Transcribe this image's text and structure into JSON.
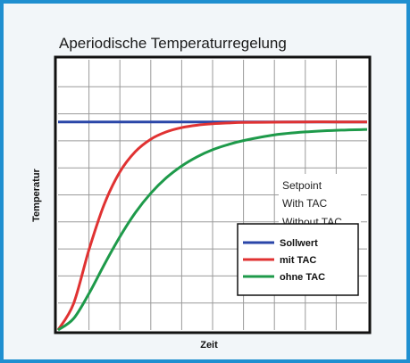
{
  "chart_data": {
    "type": "line",
    "title": "Aperiodische Temperaturregelung",
    "xlabel": "Zeit",
    "ylabel": "Temperatur",
    "xlim": [
      0,
      10
    ],
    "ylim": [
      0,
      10
    ],
    "grid": true,
    "legend_position": "bottom-right",
    "series": [
      {
        "name": "Sollwert",
        "color": "#2a46a8",
        "x": [
          0,
          10
        ],
        "y": [
          7.7,
          7.7
        ]
      },
      {
        "name": "mit TAC",
        "color": "#e03232",
        "x": [
          0,
          0.5,
          1,
          1.5,
          2,
          2.5,
          3,
          3.5,
          4,
          4.5,
          5,
          5.5,
          6,
          7,
          8,
          9,
          10
        ],
        "y": [
          0,
          0.97,
          2.97,
          4.67,
          5.85,
          6.6,
          7.06,
          7.33,
          7.49,
          7.58,
          7.63,
          7.66,
          7.68,
          7.69,
          7.7,
          7.7,
          7.7
        ]
      },
      {
        "name": "ohne TAC",
        "color": "#1e9a4a",
        "x": [
          0,
          0.5,
          1,
          1.5,
          2,
          2.5,
          3,
          3.5,
          4,
          4.5,
          5,
          5.5,
          6,
          7,
          8,
          9,
          10
        ],
        "y": [
          0,
          0.42,
          1.35,
          2.43,
          3.45,
          4.34,
          5.06,
          5.63,
          6.07,
          6.41,
          6.67,
          6.86,
          7.01,
          7.22,
          7.33,
          7.39,
          7.42
        ]
      }
    ],
    "annotations": [
      "Setpoint",
      "With TAC",
      "Without TAC"
    ]
  }
}
